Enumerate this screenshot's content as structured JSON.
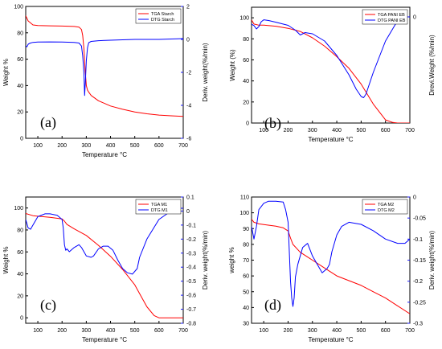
{
  "colors": {
    "tga": "#ff0000",
    "dtg": "#0000ff",
    "axis": "#000000",
    "right_axis": "#1a1aff"
  },
  "chart_data": [
    {
      "type": "line",
      "panel_label": "(a)",
      "xlabel": "Temperature °C",
      "ylabel_left": "Weight %",
      "ylabel_right": "Deriv. weight(%/min)",
      "xlim": [
        50,
        700
      ],
      "ylim_left": [
        0,
        100
      ],
      "ylim_right": [
        -6,
        2
      ],
      "x_ticks": [
        100,
        200,
        300,
        400,
        500,
        600,
        700
      ],
      "y_left_ticks": [
        0,
        20,
        40,
        60,
        80,
        100
      ],
      "y_right_ticks": [
        -6,
        -4,
        -2,
        0,
        2
      ],
      "legend_position": "top-right",
      "series": [
        {
          "name": "TGA Starch",
          "axis": "left",
          "color_key": "tga",
          "x": [
            50,
            60,
            80,
            100,
            150,
            200,
            250,
            270,
            280,
            285,
            290,
            295,
            300,
            305,
            310,
            320,
            350,
            400,
            450,
            500,
            550,
            600,
            650,
            700
          ],
          "y": [
            93,
            89,
            86,
            85.5,
            85.3,
            85.1,
            84.8,
            84.3,
            82.5,
            78,
            68,
            52,
            40,
            36.5,
            35,
            32.5,
            28.5,
            24.5,
            22,
            20,
            18.6,
            17.6,
            17.1,
            16.6
          ]
        },
        {
          "name": "DTG Starch",
          "axis": "right",
          "color_key": "dtg",
          "x": [
            50,
            55,
            60,
            65,
            70,
            80,
            100,
            150,
            200,
            250,
            270,
            280,
            285,
            290,
            293,
            296,
            300,
            305,
            310,
            320,
            350,
            400,
            500,
            600,
            700
          ],
          "y": [
            -0.4,
            -0.45,
            -0.3,
            -0.25,
            -0.22,
            -0.18,
            -0.16,
            -0.15,
            -0.16,
            -0.18,
            -0.22,
            -0.4,
            -1.0,
            -2.0,
            -3.4,
            -2.6,
            -1.3,
            -0.5,
            -0.2,
            -0.12,
            -0.08,
            -0.05,
            0.0,
            0.0,
            0.05
          ]
        }
      ]
    },
    {
      "type": "line",
      "panel_label": "(b)",
      "xlabel": "Temperature °C",
      "ylabel_left": "Weight (%)",
      "ylabel_right": "Drevi.Weight (%/min)",
      "xlim": [
        50,
        700
      ],
      "ylim_left": [
        0,
        110
      ],
      "ylim_right": [
        -4.4,
        0.4
      ],
      "x_ticks": [
        100,
        200,
        300,
        400,
        500,
        600,
        700
      ],
      "y_left_ticks": [
        0,
        20,
        40,
        60,
        80,
        100
      ],
      "y_right_ticks": [
        0
      ],
      "legend_position": "top-right",
      "series": [
        {
          "name": "TGA PANI EB",
          "axis": "left",
          "color_key": "tga",
          "x": [
            50,
            60,
            80,
            100,
            150,
            200,
            250,
            300,
            350,
            400,
            450,
            500,
            550,
            600,
            630,
            650,
            700
          ],
          "y": [
            98,
            94,
            93,
            93,
            92,
            90,
            87,
            81,
            73,
            63,
            52,
            37,
            18,
            3,
            0.5,
            0,
            0
          ]
        },
        {
          "name": "DTG PANI EB",
          "axis": "right",
          "color_key": "dtg",
          "x": [
            50,
            60,
            70,
            80,
            90,
            100,
            120,
            150,
            200,
            230,
            250,
            270,
            300,
            350,
            400,
            450,
            480,
            500,
            510,
            520,
            550,
            600,
            650,
            680,
            700
          ],
          "y": [
            -0.3,
            -0.36,
            -0.5,
            -0.4,
            -0.2,
            -0.12,
            -0.15,
            -0.22,
            -0.35,
            -0.55,
            -0.75,
            -0.65,
            -0.7,
            -1.0,
            -1.6,
            -2.4,
            -3.0,
            -3.3,
            -3.35,
            -3.2,
            -2.3,
            -1.0,
            -0.15,
            0.0,
            0.0
          ]
        }
      ]
    },
    {
      "type": "line",
      "panel_label": "(c)",
      "xlabel": "Temperature °C",
      "ylabel_left": "Weight %",
      "ylabel_right": "Deriv. weight(%/min)",
      "xlim": [
        50,
        700
      ],
      "ylim_left": [
        -5,
        110
      ],
      "ylim_right": [
        -0.8,
        0.1
      ],
      "x_ticks": [
        100,
        200,
        300,
        400,
        500,
        600,
        700
      ],
      "y_left_ticks": [
        0,
        20,
        40,
        60,
        80,
        100
      ],
      "y_right_ticks": [
        -0.8,
        -0.7,
        -0.6,
        -0.5,
        -0.4,
        -0.3,
        -0.2,
        -0.1,
        0.0,
        0.1
      ],
      "legend_position": "top-right",
      "series": [
        {
          "name": "TGA M1",
          "axis": "left",
          "color_key": "tga",
          "x": [
            50,
            80,
            100,
            150,
            200,
            210,
            220,
            250,
            300,
            350,
            400,
            450,
            500,
            520,
            550,
            580,
            600,
            650,
            700
          ],
          "y": [
            95,
            93,
            92.5,
            91.5,
            90,
            88,
            85,
            81,
            75,
            66,
            56,
            44,
            30,
            22,
            10,
            2,
            0,
            0,
            0
          ]
        },
        {
          "name": "DTG M1",
          "axis": "right",
          "color_key": "dtg",
          "x": [
            50,
            60,
            70,
            80,
            100,
            130,
            150,
            180,
            200,
            205,
            210,
            215,
            220,
            230,
            250,
            270,
            280,
            300,
            320,
            330,
            350,
            370,
            390,
            410,
            430,
            450,
            470,
            490,
            500,
            510,
            520,
            550,
            600,
            650,
            680,
            700
          ],
          "y": [
            -0.06,
            -0.12,
            -0.13,
            -0.1,
            -0.04,
            -0.02,
            -0.02,
            -0.03,
            -0.06,
            -0.12,
            -0.24,
            -0.28,
            -0.27,
            -0.29,
            -0.26,
            -0.24,
            -0.26,
            -0.32,
            -0.33,
            -0.32,
            -0.27,
            -0.25,
            -0.25,
            -0.28,
            -0.35,
            -0.41,
            -0.44,
            -0.45,
            -0.43,
            -0.41,
            -0.33,
            -0.2,
            -0.06,
            0.0,
            0.02,
            0.02
          ]
        }
      ]
    },
    {
      "type": "line",
      "panel_label": "(d)",
      "xlabel": "Temperature °C",
      "ylabel_left": "weight %",
      "ylabel_right": "Deriv. weight(%/min)",
      "xlim": [
        50,
        700
      ],
      "ylim_left": [
        30,
        110
      ],
      "ylim_right": [
        -0.3,
        0.0
      ],
      "x_ticks": [
        100,
        200,
        300,
        400,
        500,
        600,
        700
      ],
      "y_left_ticks": [
        30,
        40,
        50,
        60,
        70,
        80,
        90,
        100,
        110
      ],
      "y_right_ticks": [
        -0.3,
        -0.25,
        -0.2,
        -0.15,
        -0.1,
        -0.05,
        0.0
      ],
      "legend_position": "top-right",
      "series": [
        {
          "name": "TGA M2",
          "axis": "left",
          "color_key": "tga",
          "x": [
            50,
            60,
            80,
            100,
            150,
            180,
            200,
            210,
            220,
            250,
            300,
            350,
            400,
            450,
            500,
            550,
            600,
            650,
            700
          ],
          "y": [
            96,
            94,
            93,
            92.5,
            91.5,
            90.5,
            88.5,
            84,
            80,
            75,
            70,
            65,
            60,
            57,
            54,
            50,
            46,
            41,
            36
          ]
        },
        {
          "name": "DTG M2",
          "axis": "right",
          "color_key": "dtg",
          "x": [
            50,
            60,
            70,
            80,
            100,
            120,
            150,
            180,
            190,
            200,
            205,
            210,
            215,
            220,
            225,
            230,
            240,
            260,
            280,
            300,
            320,
            340,
            350,
            360,
            370,
            380,
            400,
            420,
            450,
            500,
            550,
            600,
            650,
            680,
            700
          ],
          "y": [
            -0.07,
            -0.1,
            -0.07,
            -0.03,
            -0.015,
            -0.01,
            -0.01,
            -0.012,
            -0.03,
            -0.06,
            -0.13,
            -0.2,
            -0.24,
            -0.26,
            -0.24,
            -0.19,
            -0.16,
            -0.12,
            -0.11,
            -0.14,
            -0.16,
            -0.18,
            -0.175,
            -0.17,
            -0.16,
            -0.13,
            -0.09,
            -0.07,
            -0.06,
            -0.065,
            -0.08,
            -0.1,
            -0.11,
            -0.11,
            -0.1
          ]
        }
      ]
    }
  ]
}
